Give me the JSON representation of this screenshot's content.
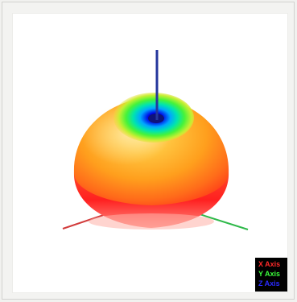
{
  "legend": {
    "x_label": "X Axis",
    "y_label": "Y Axis",
    "z_label": "Z Axis"
  },
  "colors": {
    "x_axis": "#d23c3c",
    "y_axis": "#2fb94a",
    "z_axis": "#24369c",
    "background": "#ffffff",
    "legend_bg": "#000000"
  }
}
